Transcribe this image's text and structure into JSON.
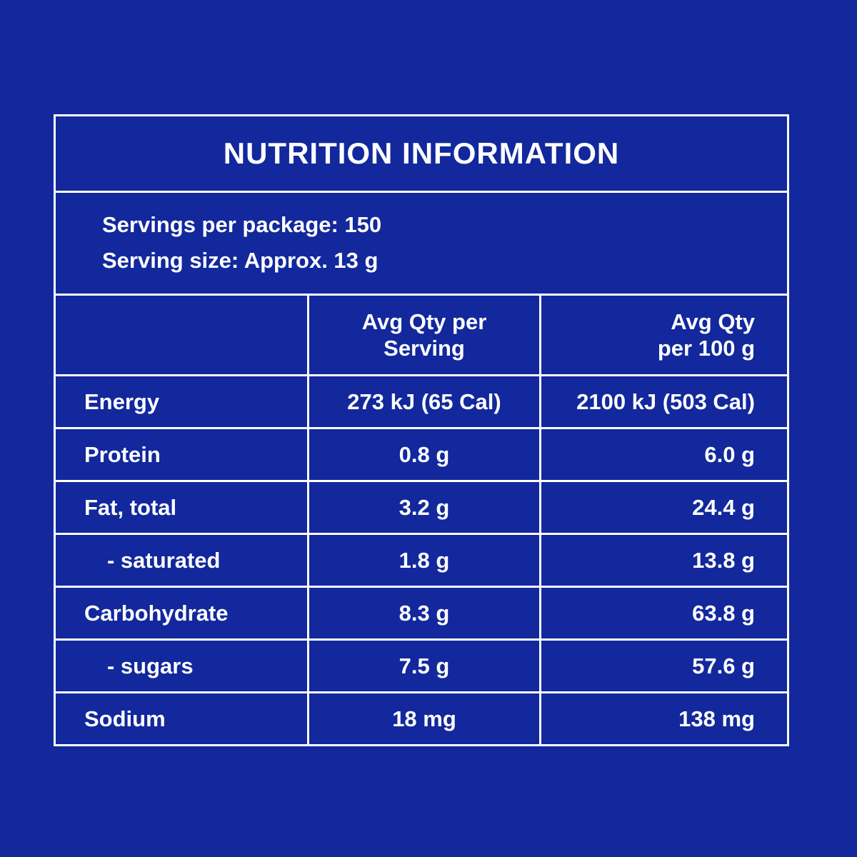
{
  "colors": {
    "background": "#12289C",
    "border": "#FFFFFF",
    "text": "#FFFFFF"
  },
  "panel": {
    "title": "NUTRITION INFORMATION",
    "servings_per_package": "Servings per package: 150",
    "serving_size": "Serving size: Approx. 13 g",
    "col_headers": {
      "per_serving_line1": "Avg Qty per",
      "per_serving_line2": "Serving",
      "per_100g_line1": "Avg Qty",
      "per_100g_line2": "per 100 g"
    },
    "rows": [
      {
        "label": "Energy",
        "per_serving": "273 kJ (65 Cal)",
        "per_100g": "2100 kJ (503 Cal)"
      },
      {
        "label": "Protein",
        "per_serving": "0.8 g",
        "per_100g": "6.0 g"
      },
      {
        "label": "Fat, total",
        "per_serving": "3.2 g",
        "per_100g": "24.4 g"
      },
      {
        "label": "- saturated",
        "per_serving": "1.8 g",
        "per_100g": "13.8 g"
      },
      {
        "label": "Carbohydrate",
        "per_serving": "8.3 g",
        "per_100g": "63.8 g"
      },
      {
        "label": "- sugars",
        "per_serving": "7.5 g",
        "per_100g": "57.6 g"
      },
      {
        "label": "Sodium",
        "per_serving": "18 mg",
        "per_100g": "138 mg"
      }
    ]
  }
}
